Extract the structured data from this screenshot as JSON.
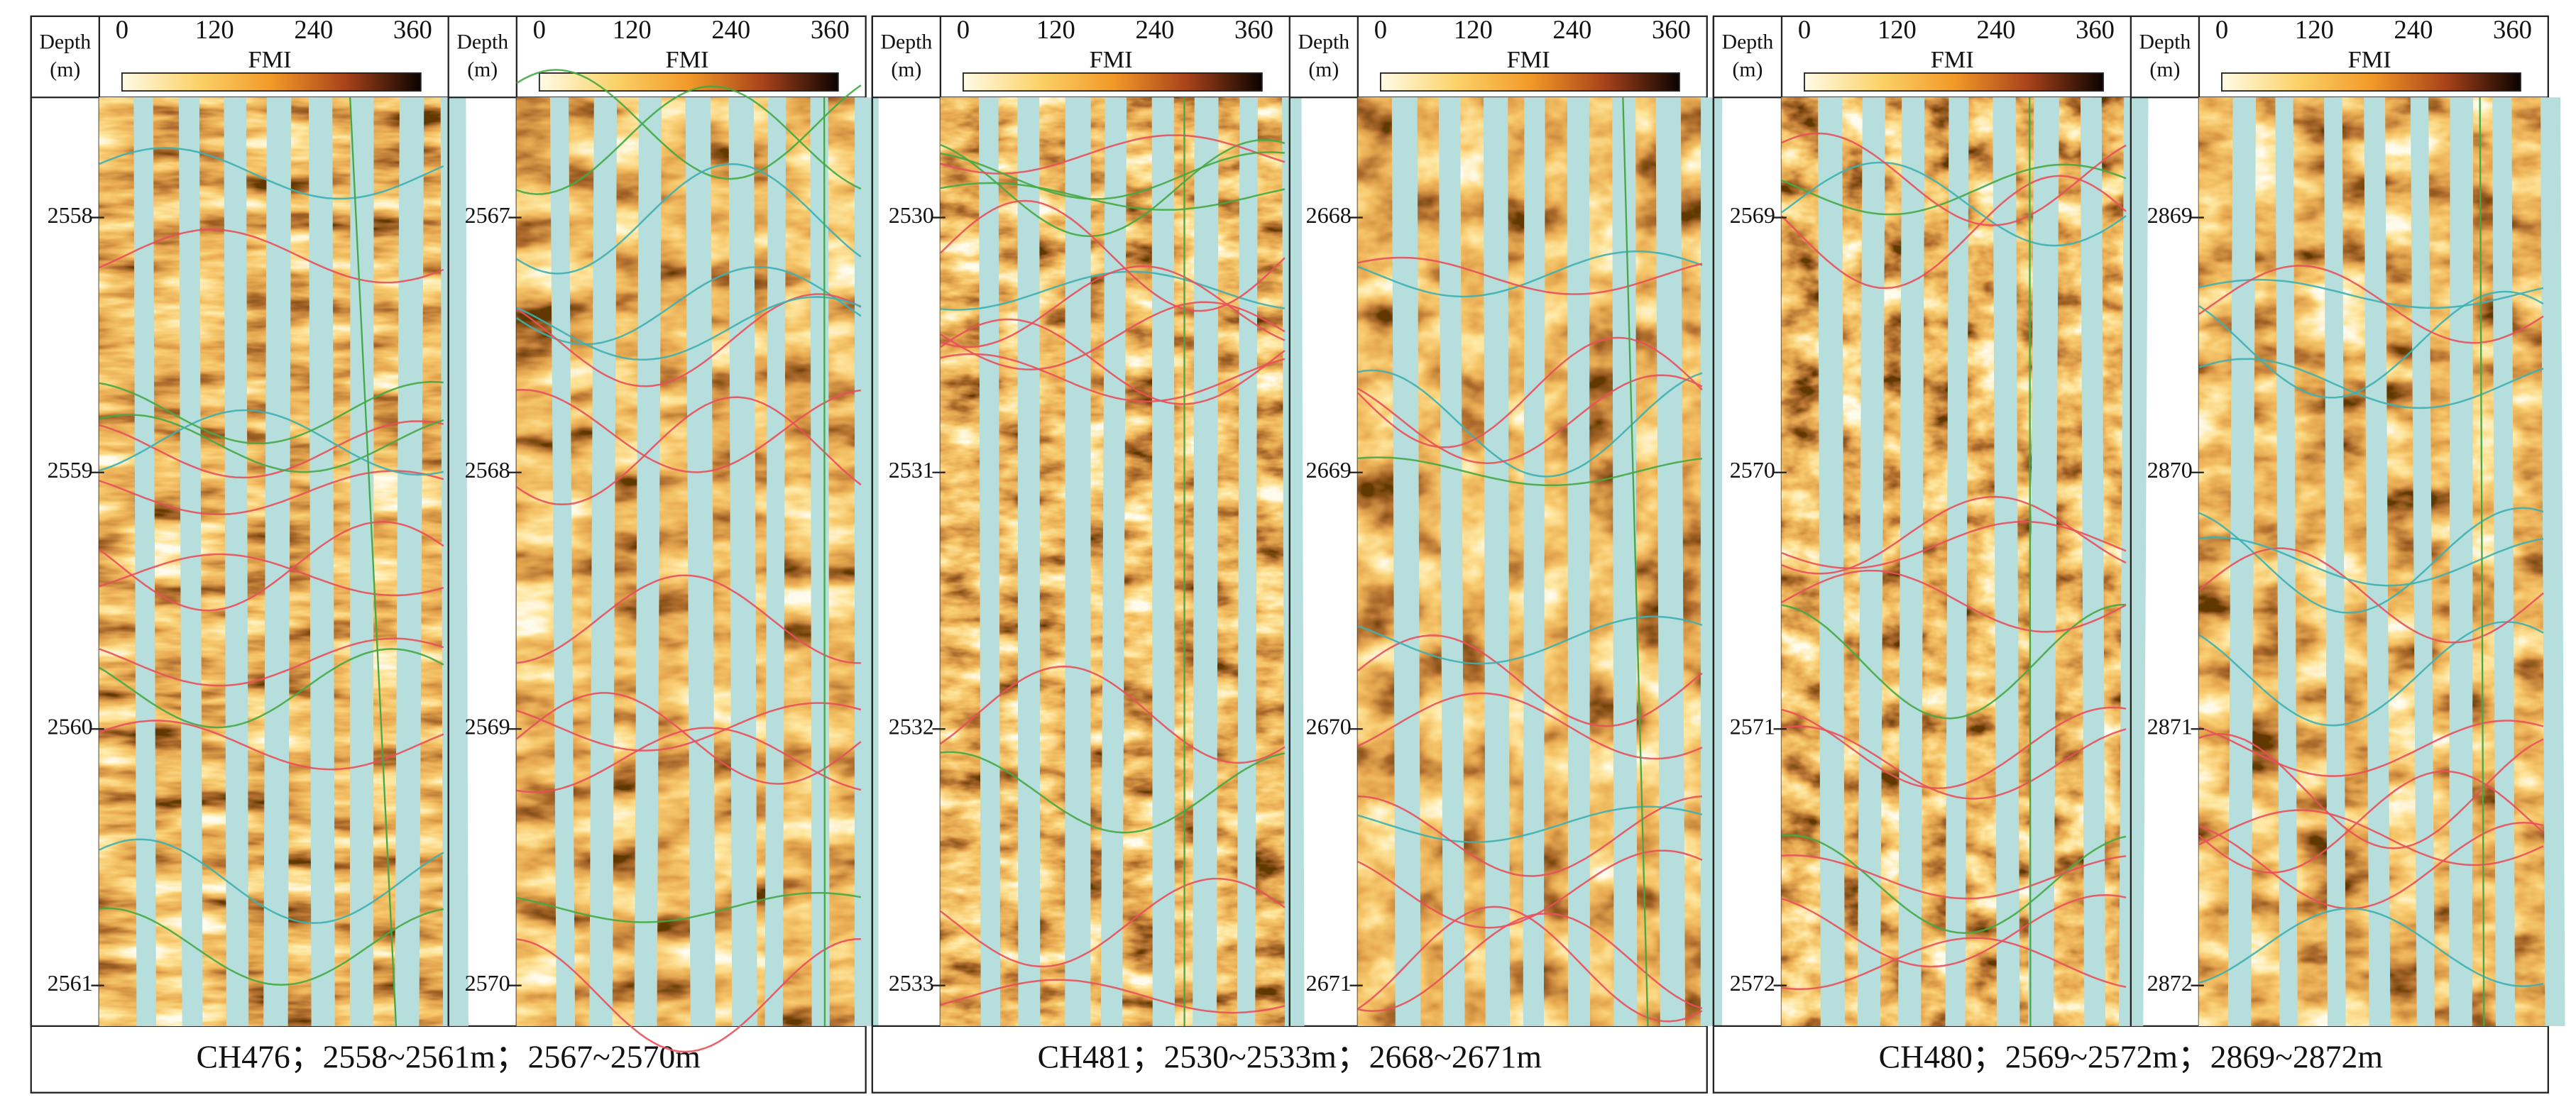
{
  "groups": [
    {
      "caption": "CH476；2558~2561m；2567~2570m",
      "panels": [
        {
          "depth_label": "Depth",
          "depth_unit": "(m)",
          "azimuth_ticks": [
            "0",
            "120",
            "240",
            "360"
          ],
          "legend": "FMI",
          "depth_ticks": [
            "2558",
            "2559",
            "2560",
            "2561"
          ]
        },
        {
          "depth_label": "Depth",
          "depth_unit": "(m)",
          "azimuth_ticks": [
            "0",
            "120",
            "240",
            "360"
          ],
          "legend": "FMI",
          "depth_ticks": [
            "2567",
            "2568",
            "2569",
            "2570"
          ]
        }
      ]
    },
    {
      "caption": "CH481；2530~2533m；2668~2671m",
      "panels": [
        {
          "depth_label": "Depth",
          "depth_unit": "(m)",
          "azimuth_ticks": [
            "0",
            "120",
            "240",
            "360"
          ],
          "legend": "FMI",
          "depth_ticks": [
            "2530",
            "2531",
            "2532",
            "2533"
          ]
        },
        {
          "depth_label": "Depth",
          "depth_unit": "(m)",
          "azimuth_ticks": [
            "0",
            "120",
            "240",
            "360"
          ],
          "legend": "FMI",
          "depth_ticks": [
            "2668",
            "2669",
            "2670",
            "2671"
          ]
        }
      ]
    },
    {
      "caption": "CH480；2569~2572m；2869~2872m",
      "panels": [
        {
          "depth_label": "Depth",
          "depth_unit": "(m)",
          "azimuth_ticks": [
            "0",
            "120",
            "240",
            "360"
          ],
          "legend": "FMI",
          "depth_ticks": [
            "2569",
            "2570",
            "2571",
            "2572"
          ]
        },
        {
          "depth_label": "Depth",
          "depth_unit": "(m)",
          "azimuth_ticks": [
            "0",
            "120",
            "240",
            "360"
          ],
          "legend": "FMI",
          "depth_ticks": [
            "2869",
            "2870",
            "2871",
            "2872"
          ]
        }
      ]
    }
  ]
}
